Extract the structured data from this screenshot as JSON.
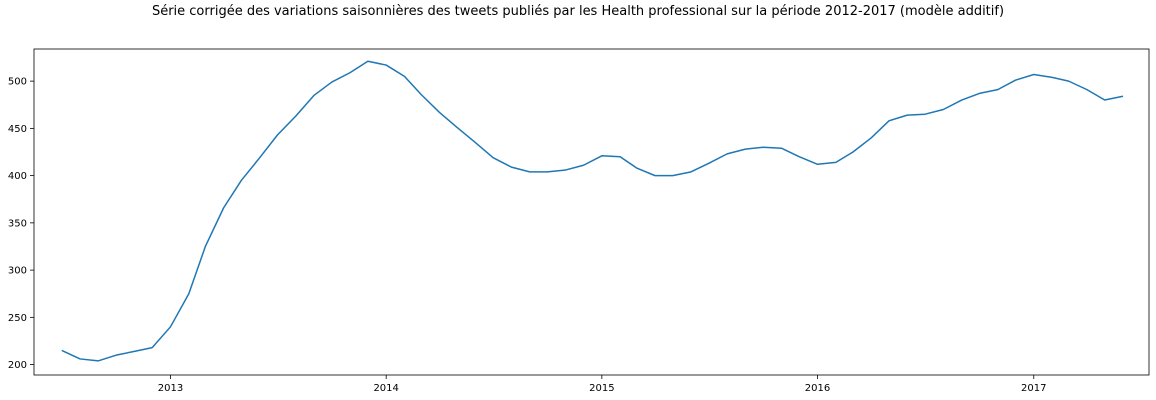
{
  "chart_data": {
    "type": "line",
    "title": "Série corrigée des variations saisonnières des tweets publiés par les Health professional sur la période 2012-2017 (modèle additif)",
    "xlabel": "",
    "ylabel": "",
    "xlim": [
      "2012-05-15",
      "2017-07-15"
    ],
    "ylim": [
      189,
      534
    ],
    "x_ticks": [
      "2013-01-01",
      "2014-01-01",
      "2015-01-01",
      "2016-01-01",
      "2017-01-01"
    ],
    "x_tick_labels": [
      "2013",
      "2014",
      "2015",
      "2016",
      "2017"
    ],
    "y_ticks": [
      200,
      250,
      300,
      350,
      400,
      450,
      500
    ],
    "y_tick_labels": [
      "200",
      "250",
      "300",
      "350",
      "400",
      "450",
      "500"
    ],
    "grid": false,
    "legend": false,
    "series": [
      {
        "color": "#1f77b4",
        "x": [
          "2012-07-01",
          "2012-08-01",
          "2012-09-01",
          "2012-10-01",
          "2012-11-01",
          "2012-12-01",
          "2013-01-01",
          "2013-02-01",
          "2013-03-01",
          "2013-04-01",
          "2013-05-01",
          "2013-06-01",
          "2013-07-01",
          "2013-08-01",
          "2013-09-01",
          "2013-10-01",
          "2013-11-01",
          "2013-12-01",
          "2014-01-01",
          "2014-02-01",
          "2014-03-01",
          "2014-04-01",
          "2014-05-01",
          "2014-06-01",
          "2014-07-01",
          "2014-08-01",
          "2014-09-01",
          "2014-10-01",
          "2014-11-01",
          "2014-12-01",
          "2015-01-01",
          "2015-02-01",
          "2015-03-01",
          "2015-04-01",
          "2015-05-01",
          "2015-06-01",
          "2015-07-01",
          "2015-08-01",
          "2015-09-01",
          "2015-10-01",
          "2015-11-01",
          "2015-12-01",
          "2016-01-01",
          "2016-02-01",
          "2016-03-01",
          "2016-04-01",
          "2016-05-01",
          "2016-06-01",
          "2016-07-01",
          "2016-08-01",
          "2016-09-01",
          "2016-10-01",
          "2016-11-01",
          "2016-12-01",
          "2017-01-01",
          "2017-02-01",
          "2017-03-01",
          "2017-04-01",
          "2017-05-01",
          "2017-06-01"
        ],
        "values": [
          215,
          206,
          204,
          210,
          214,
          218,
          240,
          275,
          325,
          366,
          395,
          419,
          443,
          463,
          485,
          499,
          509,
          521,
          517,
          505,
          486,
          467,
          451,
          435,
          419,
          409,
          404,
          404,
          406,
          411,
          421,
          420,
          408,
          400,
          400,
          404,
          413,
          423,
          428,
          430,
          429,
          420,
          412,
          414,
          425,
          440,
          458,
          464,
          465,
          470,
          480,
          487,
          491,
          501,
          507,
          504,
          500,
          491,
          480,
          484
        ]
      }
    ]
  }
}
